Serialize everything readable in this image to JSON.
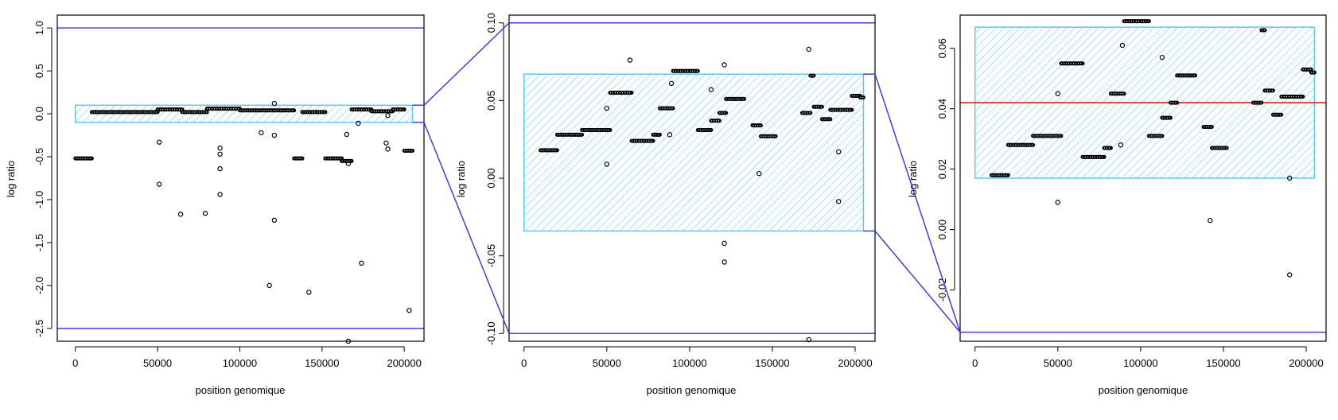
{
  "chart_data": [
    {
      "type": "scatter",
      "title": "",
      "xlabel": "position genomique",
      "ylabel": "log ratio",
      "xlim": [
        -11000,
        212000
      ],
      "ylim": [
        -2.65,
        1.15
      ],
      "xticks": [
        0,
        50000,
        100000,
        150000,
        200000
      ],
      "yticks": [
        -2.5,
        -2.0,
        -1.5,
        -1.0,
        -0.5,
        0.0,
        0.5,
        1.0
      ],
      "ytick_labels": [
        "-2.5",
        "-2.0",
        "-1.5",
        "-1.0",
        "-0.5",
        "0.0",
        "0.5",
        "1.0"
      ],
      "hlines": [
        1.0,
        -2.5
      ],
      "zoom_box": {
        "x": [
          0,
          205000
        ],
        "y": [
          -0.1,
          0.1
        ]
      },
      "segments": [
        {
          "x0": 0,
          "x1": 10000,
          "y": -0.52
        },
        {
          "x0": 10000,
          "x1": 50000,
          "y": 0.02
        },
        {
          "x0": 50000,
          "x1": 65000,
          "y": 0.05
        },
        {
          "x0": 65000,
          "x1": 80000,
          "y": 0.02
        },
        {
          "x0": 80000,
          "x1": 100000,
          "y": 0.06
        },
        {
          "x0": 100000,
          "x1": 133000,
          "y": 0.04
        },
        {
          "x0": 133000,
          "x1": 138000,
          "y": -0.52
        },
        {
          "x0": 138000,
          "x1": 152000,
          "y": 0.02
        },
        {
          "x0": 152000,
          "x1": 162000,
          "y": -0.52
        },
        {
          "x0": 162000,
          "x1": 168000,
          "y": -0.55
        },
        {
          "x0": 168000,
          "x1": 180000,
          "y": 0.05
        },
        {
          "x0": 180000,
          "x1": 193000,
          "y": 0.03
        },
        {
          "x0": 193000,
          "x1": 200000,
          "y": 0.05
        },
        {
          "x0": 200000,
          "x1": 205000,
          "y": -0.43
        }
      ],
      "points": [
        [
          51000,
          -0.33
        ],
        [
          51000,
          -0.82
        ],
        [
          64000,
          -1.17
        ],
        [
          79000,
          -1.16
        ],
        [
          88000,
          -0.4
        ],
        [
          88000,
          -0.47
        ],
        [
          88000,
          -0.64
        ],
        [
          88000,
          -0.94
        ],
        [
          113000,
          -0.22
        ],
        [
          118000,
          -2.0
        ],
        [
          121000,
          0.12
        ],
        [
          121000,
          -0.25
        ],
        [
          121000,
          -1.24
        ],
        [
          142000,
          -2.08
        ],
        [
          165000,
          -0.24
        ],
        [
          166000,
          -0.58
        ],
        [
          166000,
          -2.65
        ],
        [
          172000,
          -0.11
        ],
        [
          174000,
          -1.74
        ],
        [
          189000,
          -0.34
        ],
        [
          190000,
          -0.41
        ],
        [
          190000,
          -0.02
        ],
        [
          203000,
          -2.29
        ]
      ]
    },
    {
      "type": "scatter",
      "title": "",
      "xlabel": "position genomique",
      "ylabel": "log ratio",
      "xlim": [
        -9000,
        212000
      ],
      "ylim": [
        -0.105,
        0.105
      ],
      "xticks": [
        0,
        50000,
        100000,
        150000,
        200000
      ],
      "yticks": [
        -0.1,
        -0.05,
        0.0,
        0.05,
        0.1
      ],
      "ytick_labels": [
        "-0.10",
        "-0.05",
        "0.00",
        "0.05",
        "0.10"
      ],
      "hlines": [
        0.1,
        -0.1
      ],
      "zoom_box": {
        "x": [
          0,
          205000
        ],
        "y": [
          -0.034,
          0.067
        ]
      },
      "segments": [
        {
          "x0": 10000,
          "x1": 20000,
          "y": 0.018
        },
        {
          "x0": 20000,
          "x1": 35000,
          "y": 0.028
        },
        {
          "x0": 35000,
          "x1": 52000,
          "y": 0.031
        },
        {
          "x0": 52000,
          "x1": 65000,
          "y": 0.055
        },
        {
          "x0": 65000,
          "x1": 78000,
          "y": 0.024
        },
        {
          "x0": 78000,
          "x1": 82000,
          "y": 0.028
        },
        {
          "x0": 82000,
          "x1": 90000,
          "y": 0.045
        },
        {
          "x0": 90000,
          "x1": 105000,
          "y": 0.069
        },
        {
          "x0": 105000,
          "x1": 113000,
          "y": 0.031
        },
        {
          "x0": 113000,
          "x1": 118000,
          "y": 0.037
        },
        {
          "x0": 118000,
          "x1": 122000,
          "y": 0.042
        },
        {
          "x0": 122000,
          "x1": 133000,
          "y": 0.051
        },
        {
          "x0": 138000,
          "x1": 143000,
          "y": 0.034
        },
        {
          "x0": 143000,
          "x1": 152000,
          "y": 0.027
        },
        {
          "x0": 168000,
          "x1": 173000,
          "y": 0.042
        },
        {
          "x0": 173000,
          "x1": 175000,
          "y": 0.066
        },
        {
          "x0": 175000,
          "x1": 180000,
          "y": 0.046
        },
        {
          "x0": 180000,
          "x1": 185000,
          "y": 0.038
        },
        {
          "x0": 185000,
          "x1": 198000,
          "y": 0.044
        },
        {
          "x0": 198000,
          "x1": 203000,
          "y": 0.053
        },
        {
          "x0": 203000,
          "x1": 205000,
          "y": 0.052
        }
      ],
      "points": [
        [
          50000,
          0.045
        ],
        [
          50000,
          0.009
        ],
        [
          64000,
          0.076
        ],
        [
          89000,
          0.061
        ],
        [
          88000,
          0.028
        ],
        [
          113000,
          0.057
        ],
        [
          121000,
          0.073
        ],
        [
          121000,
          -0.042
        ],
        [
          121000,
          -0.054
        ],
        [
          142000,
          0.003
        ],
        [
          172000,
          0.083
        ],
        [
          172000,
          -0.104
        ],
        [
          190000,
          0.017
        ],
        [
          190000,
          -0.015
        ]
      ]
    },
    {
      "type": "scatter",
      "title": "",
      "xlabel": "position genomique",
      "ylabel": "log ratio",
      "xlim": [
        -9000,
        212000
      ],
      "ylim": [
        -0.037,
        0.071
      ],
      "xticks": [
        0,
        50000,
        100000,
        150000,
        200000
      ],
      "yticks": [
        -0.02,
        0.0,
        0.02,
        0.04,
        0.06
      ],
      "ytick_labels": [
        "-0.02",
        "0.00",
        "0.02",
        "0.04",
        "0.06"
      ],
      "hlines": [
        -0.034
      ],
      "mean_line": 0.042,
      "zoom_box": {
        "x": [
          0,
          205000
        ],
        "y": [
          0.017,
          0.067
        ]
      },
      "segments": [
        {
          "x0": 10000,
          "x1": 20000,
          "y": 0.018
        },
        {
          "x0": 20000,
          "x1": 35000,
          "y": 0.028
        },
        {
          "x0": 35000,
          "x1": 52000,
          "y": 0.031
        },
        {
          "x0": 52000,
          "x1": 65000,
          "y": 0.055
        },
        {
          "x0": 65000,
          "x1": 78000,
          "y": 0.024
        },
        {
          "x0": 78000,
          "x1": 82000,
          "y": 0.027
        },
        {
          "x0": 82000,
          "x1": 90000,
          "y": 0.045
        },
        {
          "x0": 90000,
          "x1": 105000,
          "y": 0.069
        },
        {
          "x0": 105000,
          "x1": 113000,
          "y": 0.031
        },
        {
          "x0": 113000,
          "x1": 118000,
          "y": 0.037
        },
        {
          "x0": 118000,
          "x1": 122000,
          "y": 0.042
        },
        {
          "x0": 122000,
          "x1": 133000,
          "y": 0.051
        },
        {
          "x0": 138000,
          "x1": 143000,
          "y": 0.034
        },
        {
          "x0": 143000,
          "x1": 152000,
          "y": 0.027
        },
        {
          "x0": 168000,
          "x1": 173000,
          "y": 0.042
        },
        {
          "x0": 173000,
          "x1": 175000,
          "y": 0.066
        },
        {
          "x0": 175000,
          "x1": 180000,
          "y": 0.046
        },
        {
          "x0": 180000,
          "x1": 185000,
          "y": 0.038
        },
        {
          "x0": 185000,
          "x1": 198000,
          "y": 0.044
        },
        {
          "x0": 198000,
          "x1": 203000,
          "y": 0.053
        },
        {
          "x0": 203000,
          "x1": 205000,
          "y": 0.052
        }
      ],
      "points": [
        [
          50000,
          0.045
        ],
        [
          50000,
          0.009
        ],
        [
          89000,
          0.061
        ],
        [
          88000,
          0.028
        ],
        [
          113000,
          0.057
        ],
        [
          142000,
          0.003
        ],
        [
          190000,
          0.017
        ],
        [
          190000,
          -0.015
        ]
      ]
    }
  ]
}
